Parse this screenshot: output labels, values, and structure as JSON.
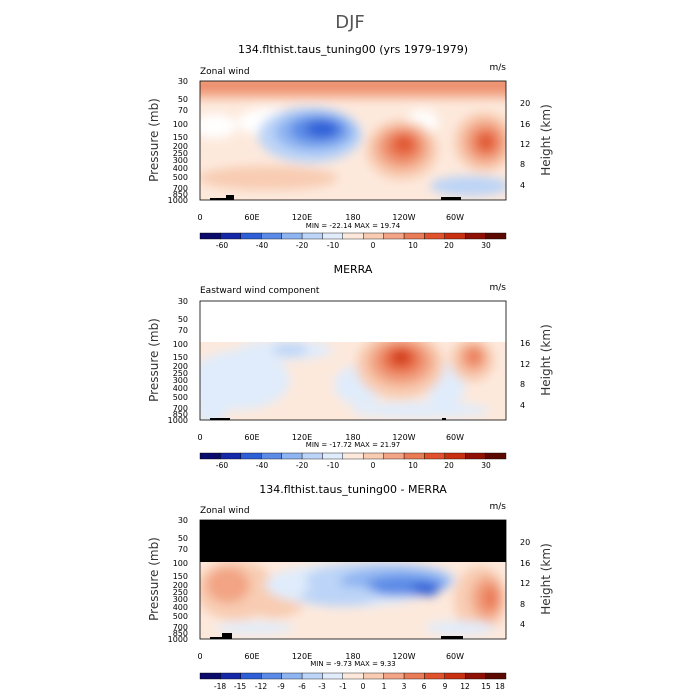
{
  "figure_title": "DJF",
  "chart_data": [
    {
      "type": "heatmap",
      "title": "134.flthist.taus_tuning00 (yrs 1979-1979)",
      "left_label": "Zonal wind",
      "units": "m/s",
      "ylabel": "Pressure (mb)",
      "ylabel_right": "Height (km)",
      "xticks": [
        "0",
        "60E",
        "120E",
        "180",
        "120W",
        "60W"
      ],
      "yticks": [
        "30",
        "50",
        "70",
        "100",
        "150",
        "200",
        "250",
        "300",
        "400",
        "500",
        "700",
        "850",
        "1000"
      ],
      "height_ticks": [
        "4",
        "8",
        "12",
        "16",
        "20"
      ],
      "stats": "MIN = -22.14  MAX = 19.74",
      "colorbar_ticks": [
        "-60",
        "-40",
        "-20",
        "-10",
        "0",
        "10",
        "20",
        "30"
      ],
      "min": -22.14,
      "max": 19.74
    },
    {
      "type": "heatmap",
      "title": "MERRA",
      "left_label": "Eastward wind component",
      "units": "m/s",
      "ylabel": "Pressure (mb)",
      "ylabel_right": "Height (km)",
      "xticks": [
        "0",
        "60E",
        "120E",
        "180",
        "120W",
        "60W"
      ],
      "yticks": [
        "30",
        "50",
        "70",
        "100",
        "150",
        "200",
        "250",
        "300",
        "400",
        "500",
        "700",
        "850",
        "1000"
      ],
      "height_ticks": [
        "4",
        "8",
        "12",
        "16"
      ],
      "stats": "MIN = -17.72  MAX = 21.97",
      "colorbar_ticks": [
        "-60",
        "-40",
        "-20",
        "-10",
        "0",
        "10",
        "20",
        "30"
      ],
      "min": -17.72,
      "max": 21.97
    },
    {
      "type": "heatmap",
      "title": "134.flthist.taus_tuning00 - MERRA",
      "left_label": "Zonal wind",
      "units": "m/s",
      "ylabel": "Pressure (mb)",
      "ylabel_right": "Height (km)",
      "xticks": [
        "0",
        "60E",
        "120E",
        "180",
        "120W",
        "60W"
      ],
      "yticks": [
        "30",
        "50",
        "70",
        "100",
        "150",
        "200",
        "250",
        "300",
        "400",
        "500",
        "700",
        "850",
        "1000"
      ],
      "height_ticks": [
        "4",
        "8",
        "12",
        "16",
        "20"
      ],
      "stats": "MIN = -9.73  MAX = 9.33",
      "colorbar_ticks": [
        "-18",
        "-15",
        "-12",
        "-9",
        "-6",
        "-3",
        "-1",
        "0",
        "1",
        "3",
        "6",
        "9",
        "12",
        "15",
        "18"
      ],
      "min": -9.73,
      "max": 9.33
    }
  ],
  "colors": {
    "scale": [
      "#0b0b6b",
      "#1428a8",
      "#2f5fd6",
      "#5b8be6",
      "#8eb4f1",
      "#bcd4f7",
      "#e0ecfb",
      "#fde9dc",
      "#f8ccb2",
      "#f2a484",
      "#ea7b57",
      "#e0522e",
      "#c8310f",
      "#8f1106",
      "#5a0a00"
    ]
  }
}
